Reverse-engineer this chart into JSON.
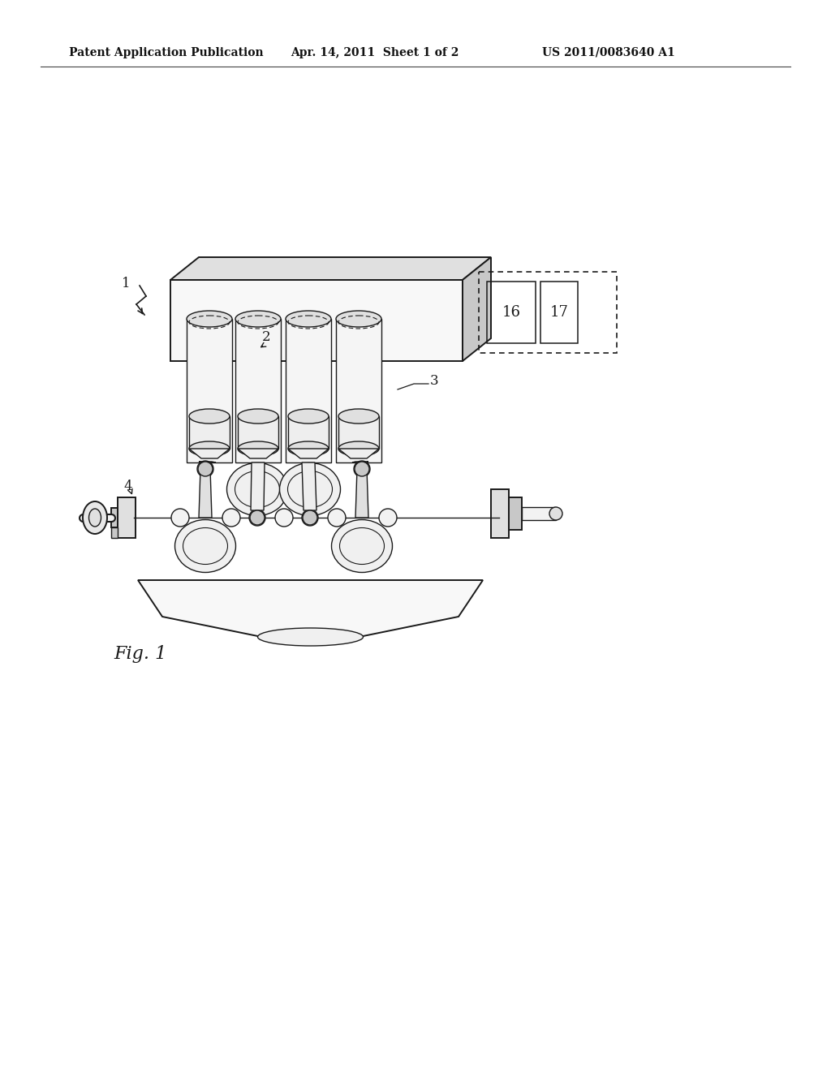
{
  "bg_color": "#ffffff",
  "header_left": "Patent Application Publication",
  "header_mid": "Apr. 14, 2011  Sheet 1 of 2",
  "header_right": "US 2011/0083640 A1",
  "fig_label": "Fig. 1",
  "label_1": "1",
  "label_2": "2",
  "label_3": "3",
  "label_4": "4",
  "label_16": "16",
  "label_17": "17",
  "line_color": "#1a1a1a",
  "fill_light": "#f2f2f2",
  "fill_mid": "#e0e0e0",
  "fill_dark": "#c8c8c8"
}
